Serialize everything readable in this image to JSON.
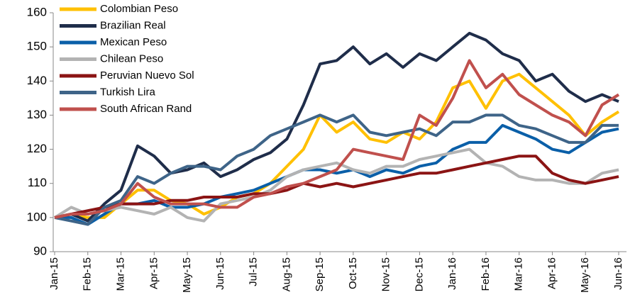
{
  "chart_data": {
    "type": "line",
    "categories": [
      "Jan-15",
      null,
      "Feb-15",
      null,
      "Mar-15",
      null,
      "Apr-15",
      null,
      "May-15",
      null,
      "Jun-15",
      null,
      "Jul-15",
      null,
      "Aug-15",
      null,
      "Sep-15",
      null,
      "Oct-15",
      null,
      "Nov-15",
      null,
      "Dec-15",
      null,
      "Jan-16",
      null,
      "Feb-16",
      null,
      "Mar-16",
      null,
      "Apr-16",
      null,
      "May-16",
      null,
      "Jun-16"
    ],
    "series": [
      {
        "name": "Colombian Peso",
        "color": "#ffc000",
        "values": [
          100,
          101,
          100,
          100,
          104,
          108,
          108,
          105,
          104,
          101,
          103,
          106,
          107,
          110,
          115,
          120,
          130,
          125,
          128,
          123,
          122,
          125,
          123,
          128,
          138,
          140,
          132,
          140,
          142,
          138,
          134,
          130,
          124,
          128,
          131
        ]
      },
      {
        "name": "Brazilian Real",
        "color": "#1f2d4a",
        "values": [
          100,
          101,
          99,
          104,
          108,
          121,
          118,
          113,
          114,
          116,
          112,
          114,
          117,
          119,
          123,
          133,
          145,
          146,
          150,
          145,
          148,
          144,
          148,
          146,
          150,
          154,
          152,
          148,
          146,
          140,
          142,
          137,
          134,
          136,
          134
        ]
      },
      {
        "name": "Mexican Peso",
        "color": "#0a5fa8",
        "values": [
          100,
          100,
          98,
          101,
          104,
          104,
          105,
          103,
          103,
          104,
          106,
          107,
          108,
          110,
          112,
          114,
          114,
          113,
          114,
          112,
          114,
          113,
          115,
          116,
          120,
          122,
          122,
          127,
          125,
          123,
          120,
          119,
          122,
          125,
          126
        ]
      },
      {
        "name": "Chilean Peso",
        "color": "#b3b3b3",
        "values": [
          100,
          103,
          101,
          102,
          103,
          102,
          101,
          103,
          100,
          99,
          104,
          105,
          106,
          108,
          112,
          114,
          115,
          116,
          114,
          113,
          115,
          115,
          117,
          118,
          119,
          120,
          116,
          115,
          112,
          111,
          111,
          110,
          110,
          113,
          114
        ]
      },
      {
        "name": "Peruvian Nuevo Sol",
        "color": "#8b1414",
        "values": [
          100,
          101,
          102,
          103,
          104,
          104,
          104,
          105,
          105,
          106,
          106,
          106,
          107,
          107,
          108,
          110,
          109,
          110,
          109,
          110,
          111,
          112,
          113,
          113,
          114,
          115,
          116,
          117,
          118,
          118,
          113,
          111,
          110,
          111,
          112
        ]
      },
      {
        "name": "Turkish Lira",
        "color": "#3e6488",
        "values": [
          100,
          99,
          98,
          103,
          105,
          112,
          110,
          113,
          115,
          115,
          114,
          118,
          120,
          124,
          126,
          128,
          130,
          128,
          130,
          125,
          124,
          125,
          126,
          124,
          128,
          128,
          130,
          130,
          127,
          126,
          124,
          122,
          122,
          127,
          127
        ]
      },
      {
        "name": "South African Rand",
        "color": "#c0504d",
        "values": [
          100,
          101,
          101,
          102,
          104,
          110,
          106,
          104,
          104,
          104,
          103,
          103,
          106,
          107,
          109,
          110,
          112,
          114,
          120,
          119,
          118,
          117,
          130,
          127,
          135,
          146,
          138,
          142,
          136,
          133,
          130,
          128,
          124,
          133,
          136
        ]
      }
    ],
    "ylim": [
      90,
      160
    ],
    "yticks": [
      90,
      100,
      110,
      120,
      130,
      140,
      150,
      160
    ]
  }
}
